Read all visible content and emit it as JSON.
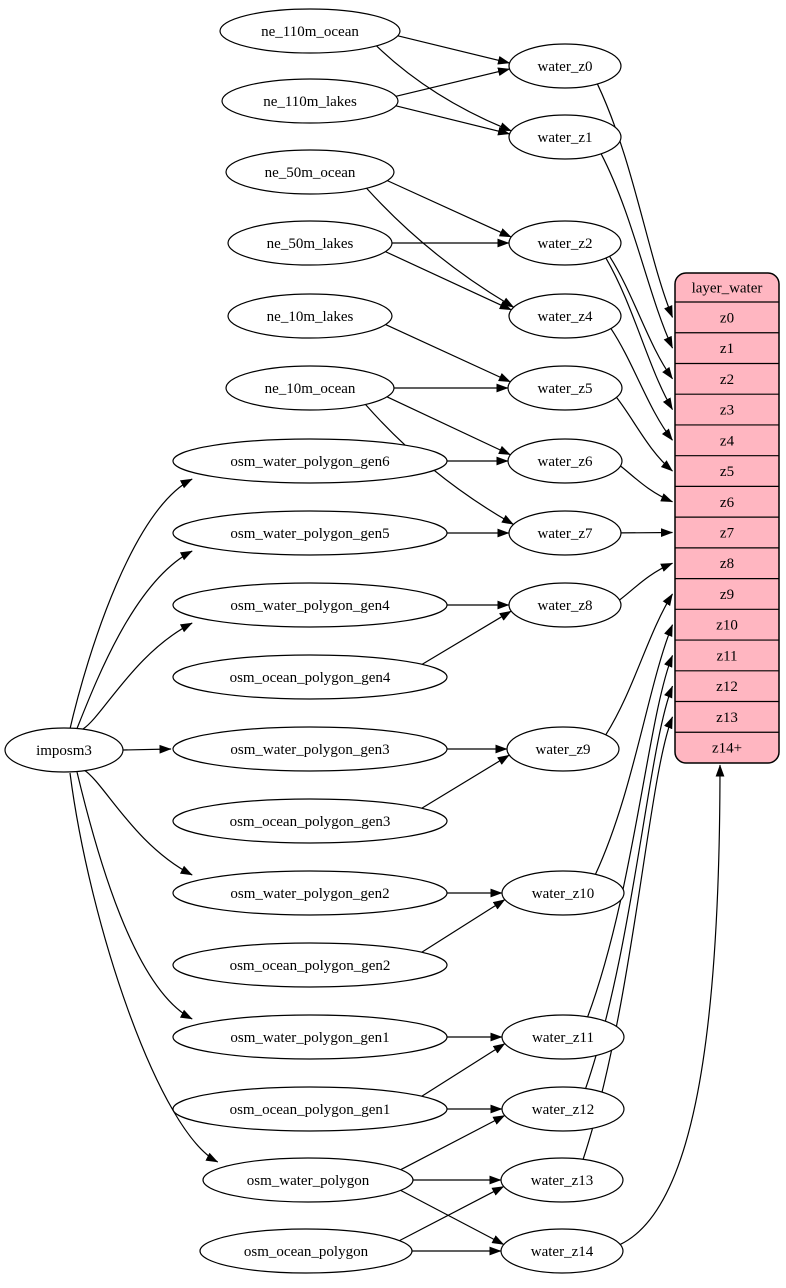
{
  "diagram": {
    "background": "#ffffff",
    "node_fill": "#ffffff",
    "node_stroke": "#000000",
    "edge_color": "#000000",
    "root": {
      "id": "imposm3",
      "label": "imposm3"
    },
    "sources": [
      {
        "id": "ne_110m_ocean",
        "label": "ne_110m_ocean"
      },
      {
        "id": "ne_110m_lakes",
        "label": "ne_110m_lakes"
      },
      {
        "id": "ne_50m_ocean",
        "label": "ne_50m_ocean"
      },
      {
        "id": "ne_50m_lakes",
        "label": "ne_50m_lakes"
      },
      {
        "id": "ne_10m_lakes",
        "label": "ne_10m_lakes"
      },
      {
        "id": "ne_10m_ocean",
        "label": "ne_10m_ocean"
      },
      {
        "id": "osm_water_polygon_gen6",
        "label": "osm_water_polygon_gen6"
      },
      {
        "id": "osm_water_polygon_gen5",
        "label": "osm_water_polygon_gen5"
      },
      {
        "id": "osm_water_polygon_gen4",
        "label": "osm_water_polygon_gen4"
      },
      {
        "id": "osm_ocean_polygon_gen4",
        "label": "osm_ocean_polygon_gen4"
      },
      {
        "id": "osm_water_polygon_gen3",
        "label": "osm_water_polygon_gen3"
      },
      {
        "id": "osm_ocean_polygon_gen3",
        "label": "osm_ocean_polygon_gen3"
      },
      {
        "id": "osm_water_polygon_gen2",
        "label": "osm_water_polygon_gen2"
      },
      {
        "id": "osm_ocean_polygon_gen2",
        "label": "osm_ocean_polygon_gen2"
      },
      {
        "id": "osm_water_polygon_gen1",
        "label": "osm_water_polygon_gen1"
      },
      {
        "id": "osm_ocean_polygon_gen1",
        "label": "osm_ocean_polygon_gen1"
      },
      {
        "id": "osm_water_polygon",
        "label": "osm_water_polygon"
      },
      {
        "id": "osm_ocean_polygon",
        "label": "osm_ocean_polygon"
      }
    ],
    "intermediates": [
      {
        "id": "water_z0",
        "label": "water_z0"
      },
      {
        "id": "water_z1",
        "label": "water_z1"
      },
      {
        "id": "water_z2",
        "label": "water_z2"
      },
      {
        "id": "water_z4",
        "label": "water_z4"
      },
      {
        "id": "water_z5",
        "label": "water_z5"
      },
      {
        "id": "water_z6",
        "label": "water_z6"
      },
      {
        "id": "water_z7",
        "label": "water_z7"
      },
      {
        "id": "water_z8",
        "label": "water_z8"
      },
      {
        "id": "water_z9",
        "label": "water_z9"
      },
      {
        "id": "water_z10",
        "label": "water_z10"
      },
      {
        "id": "water_z11",
        "label": "water_z11"
      },
      {
        "id": "water_z12",
        "label": "water_z12"
      },
      {
        "id": "water_z13",
        "label": "water_z13"
      },
      {
        "id": "water_z14",
        "label": "water_z14"
      }
    ],
    "table": {
      "title": "layer_water",
      "fill": "#ffb6c1",
      "stroke": "#000000",
      "rows": [
        "z0",
        "z1",
        "z2",
        "z3",
        "z4",
        "z5",
        "z6",
        "z7",
        "z8",
        "z9",
        "z10",
        "z11",
        "z12",
        "z13",
        "z14+"
      ]
    },
    "edges": [
      {
        "from": "ne_110m_ocean",
        "to": "water_z0"
      },
      {
        "from": "ne_110m_lakes",
        "to": "water_z0"
      },
      {
        "from": "ne_110m_ocean",
        "to": "water_z1"
      },
      {
        "from": "ne_110m_lakes",
        "to": "water_z1"
      },
      {
        "from": "ne_50m_ocean",
        "to": "water_z2"
      },
      {
        "from": "ne_50m_lakes",
        "to": "water_z2"
      },
      {
        "from": "ne_50m_ocean",
        "to": "water_z4"
      },
      {
        "from": "ne_50m_lakes",
        "to": "water_z4"
      },
      {
        "from": "ne_10m_lakes",
        "to": "water_z5"
      },
      {
        "from": "ne_10m_ocean",
        "to": "water_z5"
      },
      {
        "from": "ne_10m_ocean",
        "to": "water_z6"
      },
      {
        "from": "osm_water_polygon_gen6",
        "to": "water_z6"
      },
      {
        "from": "ne_10m_ocean",
        "to": "water_z7"
      },
      {
        "from": "osm_water_polygon_gen5",
        "to": "water_z7"
      },
      {
        "from": "osm_water_polygon_gen4",
        "to": "water_z8"
      },
      {
        "from": "osm_ocean_polygon_gen4",
        "to": "water_z8"
      },
      {
        "from": "osm_water_polygon_gen3",
        "to": "water_z9"
      },
      {
        "from": "osm_ocean_polygon_gen3",
        "to": "water_z9"
      },
      {
        "from": "osm_water_polygon_gen2",
        "to": "water_z10"
      },
      {
        "from": "osm_ocean_polygon_gen2",
        "to": "water_z10"
      },
      {
        "from": "osm_water_polygon_gen1",
        "to": "water_z11"
      },
      {
        "from": "osm_ocean_polygon_gen1",
        "to": "water_z11"
      },
      {
        "from": "osm_ocean_polygon_gen1",
        "to": "water_z12"
      },
      {
        "from": "osm_water_polygon",
        "to": "water_z12"
      },
      {
        "from": "osm_water_polygon",
        "to": "water_z13"
      },
      {
        "from": "osm_ocean_polygon",
        "to": "water_z13"
      },
      {
        "from": "osm_water_polygon",
        "to": "water_z14"
      },
      {
        "from": "osm_ocean_polygon",
        "to": "water_z14"
      },
      {
        "from": "imposm3",
        "to": "osm_water_polygon_gen6"
      },
      {
        "from": "imposm3",
        "to": "osm_water_polygon_gen5"
      },
      {
        "from": "imposm3",
        "to": "osm_water_polygon_gen4"
      },
      {
        "from": "imposm3",
        "to": "osm_water_polygon_gen3"
      },
      {
        "from": "imposm3",
        "to": "osm_water_polygon_gen2"
      },
      {
        "from": "imposm3",
        "to": "osm_water_polygon_gen1"
      },
      {
        "from": "imposm3",
        "to": "osm_water_polygon"
      },
      {
        "from": "water_z0",
        "to": "layer_water.z0"
      },
      {
        "from": "water_z1",
        "to": "layer_water.z1"
      },
      {
        "from": "water_z2",
        "to": "layer_water.z2"
      },
      {
        "from": "water_z2",
        "to": "layer_water.z3"
      },
      {
        "from": "water_z4",
        "to": "layer_water.z4"
      },
      {
        "from": "water_z5",
        "to": "layer_water.z5"
      },
      {
        "from": "water_z6",
        "to": "layer_water.z6"
      },
      {
        "from": "water_z7",
        "to": "layer_water.z7"
      },
      {
        "from": "water_z8",
        "to": "layer_water.z8"
      },
      {
        "from": "water_z9",
        "to": "layer_water.z9"
      },
      {
        "from": "water_z10",
        "to": "layer_water.z10"
      },
      {
        "from": "water_z11",
        "to": "layer_water.z11"
      },
      {
        "from": "water_z12",
        "to": "layer_water.z12"
      },
      {
        "from": "water_z13",
        "to": "layer_water.z13"
      },
      {
        "from": "water_z14",
        "to": "layer_water.z14+"
      }
    ]
  }
}
